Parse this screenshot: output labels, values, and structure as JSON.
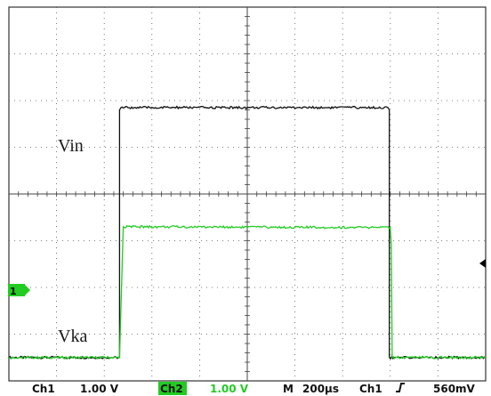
{
  "chart_data": {
    "type": "line",
    "grid": true,
    "x_divisions": 10,
    "y_divisions": 8,
    "series": [
      {
        "key": "ch1",
        "color": "#111111",
        "x_div": [
          0,
          2.32,
          2.32,
          2.35,
          7.95,
          7.98,
          7.98,
          10
        ],
        "y_div": [
          0.5,
          0.5,
          5.8,
          5.85,
          5.85,
          5.8,
          0.5,
          0.5
        ]
      },
      {
        "key": "ch2",
        "color": "#22cc22",
        "x_div": [
          0,
          2.32,
          2.34,
          2.4,
          8.0,
          8.02,
          8.04,
          10
        ],
        "y_div": [
          0.5,
          0.5,
          1.2,
          3.3,
          3.28,
          2.9,
          0.5,
          0.5
        ]
      }
    ],
    "annotations": [
      {
        "key": "vin",
        "text": "Vin"
      },
      {
        "key": "vka",
        "text": "Vka"
      }
    ]
  },
  "marker": {
    "label": "1"
  },
  "status_bar": {
    "ch1_label": "Ch1",
    "ch1_scale": "1.00 V",
    "ch2_label": "Ch2",
    "ch2_scale": "1.00 V",
    "time_label": "M",
    "time_scale": "200µs",
    "trigger_source": "Ch1",
    "trigger_slope": "∩",
    "trigger_level": "560mV"
  },
  "colors": {
    "ch1": "#111111",
    "ch2": "#22cc22",
    "grid": "#555555"
  }
}
